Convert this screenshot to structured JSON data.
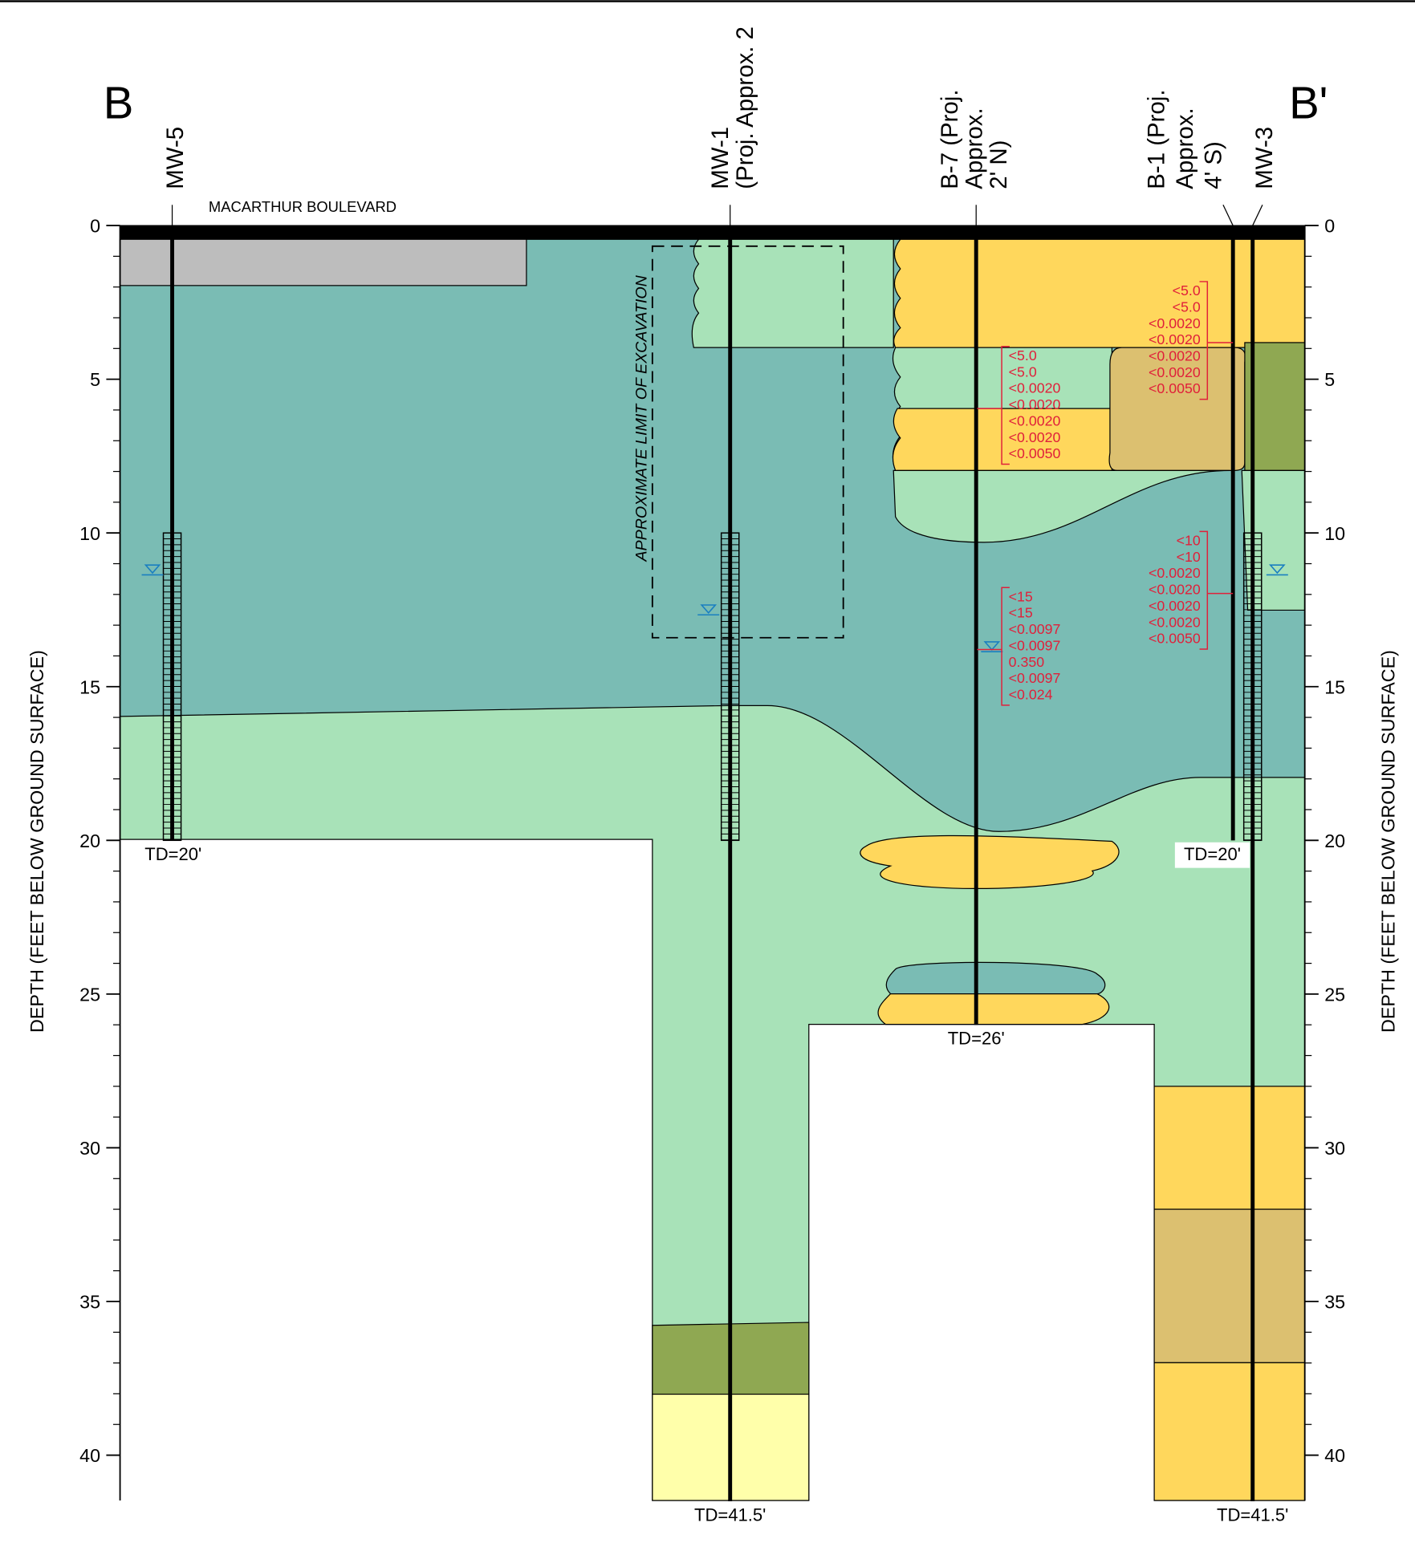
{
  "section": {
    "start": "B",
    "end": "B'"
  },
  "road_label": "MACARTHUR BOULEVARD",
  "excavation_label": "APPROXIMATE LIMIT OF EXCAVATION",
  "depth_axis": {
    "title": "DEPTH (FEET BELOW GROUND SURFACE)",
    "ylim": [
      0,
      40
    ],
    "ticks": [
      0,
      5,
      10,
      15,
      20,
      25,
      30,
      35,
      40
    ]
  },
  "wells": [
    {
      "name_lines": [
        "MW-5"
      ],
      "total_depth": 20,
      "td_label": "TD=20'",
      "screen": [
        10,
        20
      ],
      "water_level": 11.3
    },
    {
      "name_lines": [
        "MW-1",
        "(Proj. Approx. 2"
      ],
      "total_depth": 41.5,
      "td_label": "TD=41.5'",
      "screen": [
        10,
        20
      ],
      "water_level": 12.6
    },
    {
      "name_lines": [
        "B-7 (Proj.",
        "Approx.",
        "2' N)"
      ],
      "total_depth": 26,
      "td_label": "TD=26'",
      "water_level": 13.8
    },
    {
      "name_lines": [
        "B-1 (Proj.",
        "Approx.",
        "4' S)"
      ],
      "total_depth": 20,
      "td_label": "TD=20'"
    },
    {
      "name_lines": [
        "MW-3"
      ],
      "total_depth": 41.5,
      "td_label": "TD=41.5'",
      "screen": [
        10,
        20
      ],
      "water_level": 11.3
    }
  ],
  "lab_results": [
    {
      "values": [
        "<5.0",
        "<5.0",
        "<0.0020",
        "<0.0020",
        "<0.0020",
        "<0.0020",
        "<0.0050"
      ]
    },
    {
      "values": [
        "<15",
        "<15",
        "<0.0097",
        "<0.0097",
        "0.350",
        "<0.0097",
        "<0.024"
      ]
    },
    {
      "values": [
        "<5.0",
        "<5.0",
        "<0.0020",
        "<0.0020",
        "<0.0020",
        "<0.0020",
        "<0.0050"
      ]
    },
    {
      "values": [
        "<10",
        "<10",
        "<0.0020",
        "<0.0020",
        "<0.0020",
        "<0.0020",
        "<0.0050"
      ]
    }
  ]
}
